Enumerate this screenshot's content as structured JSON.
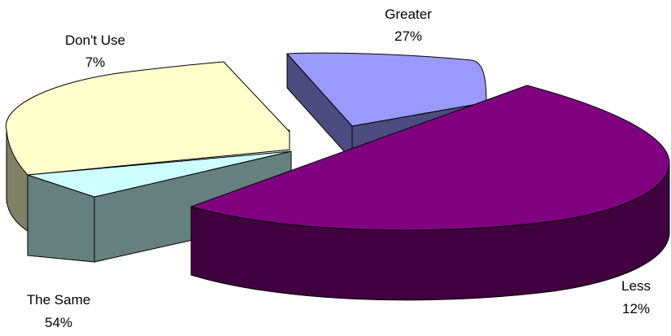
{
  "chart_data": {
    "type": "pie",
    "style": "3d-exploded",
    "slices": [
      {
        "label": "Greater",
        "value": 27,
        "display": "27%",
        "color": "#9999ff"
      },
      {
        "label": "Less",
        "value": 12,
        "display": "12%",
        "color": "#800080"
      },
      {
        "label": "The Same",
        "value": 54,
        "display": "54%",
        "color": "#ccffff"
      },
      {
        "label": "Don't Use",
        "value": 7,
        "display": "7%",
        "color": "#ffffcc"
      }
    ]
  }
}
